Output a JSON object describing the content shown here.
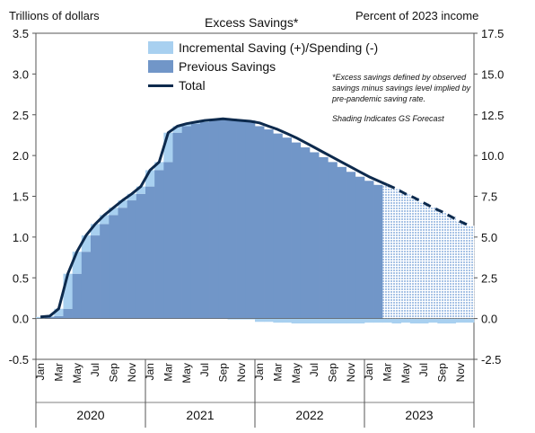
{
  "chart_data": {
    "type": "area",
    "title": "Excess Savings*",
    "ylabel_left": "Trillions of dollars",
    "ylabel_right": "Percent of 2023 income",
    "ylim_left": [
      -0.5,
      3.5
    ],
    "yticks_left": [
      "3.5",
      "3.0",
      "2.5",
      "2.0",
      "1.5",
      "1.0",
      "0.5",
      "0.0",
      "-0.5"
    ],
    "ylim_right": [
      -2.5,
      17.5
    ],
    "yticks_right": [
      "17.5",
      "15.0",
      "12.5",
      "10.0",
      "7.5",
      "5.0",
      "2.5",
      "0.0",
      "-2.5"
    ],
    "month_labels": [
      "Jan",
      "Mar",
      "May",
      "Jul",
      "Sep",
      "Nov"
    ],
    "years": [
      "2020",
      "2021",
      "2022",
      "2023"
    ],
    "legend": {
      "incremental": "Incremental Saving (+)/Spending (-)",
      "previous": "Previous Savings",
      "total": "Total"
    },
    "note_lines": [
      "*Excess savings defined by observed savings minus savings level implied by pre-pandemic saving rate.",
      "Shading Indicates GS Forecast"
    ],
    "forecast_start": "2023-03",
    "series": [
      {
        "name": "Total",
        "values": [
          0.02,
          0.03,
          0.12,
          0.55,
          0.82,
          1.02,
          1.16,
          1.27,
          1.36,
          1.45,
          1.53,
          1.62,
          1.82,
          1.92,
          2.28,
          2.36,
          2.39,
          2.41,
          2.43,
          2.44,
          2.45,
          2.44,
          2.43,
          2.42,
          2.4,
          2.36,
          2.32,
          2.27,
          2.22,
          2.16,
          2.1,
          2.04,
          1.98,
          1.92,
          1.86,
          1.8,
          1.74,
          1.69,
          1.64,
          1.59,
          1.53,
          1.48,
          1.42,
          1.36,
          1.31,
          1.25,
          1.19,
          1.14
        ]
      },
      {
        "name": "Previous Savings",
        "values": [
          0.0,
          0.02,
          0.03,
          0.12,
          0.55,
          0.82,
          1.02,
          1.16,
          1.27,
          1.36,
          1.45,
          1.53,
          1.62,
          1.82,
          1.92,
          2.28,
          2.36,
          2.39,
          2.41,
          2.43,
          2.44,
          2.45,
          2.44,
          2.43,
          2.36,
          2.32,
          2.27,
          2.22,
          2.16,
          2.1,
          2.04,
          1.98,
          1.92,
          1.86,
          1.8,
          1.74,
          1.69,
          1.64,
          1.59,
          1.53,
          1.48,
          1.42,
          1.36,
          1.31,
          1.25,
          1.19,
          1.14,
          1.09
        ]
      },
      {
        "name": "Incremental Saving (+)/Spending (-)",
        "values": [
          0.02,
          0.01,
          0.09,
          0.43,
          0.27,
          0.2,
          0.14,
          0.11,
          0.09,
          0.09,
          0.08,
          0.09,
          0.2,
          0.1,
          0.36,
          0.08,
          0.03,
          0.02,
          0.02,
          0.01,
          0.01,
          -0.01,
          -0.01,
          -0.01,
          -0.04,
          -0.04,
          -0.05,
          -0.05,
          -0.06,
          -0.06,
          -0.06,
          -0.06,
          -0.06,
          -0.06,
          -0.06,
          -0.06,
          -0.05,
          -0.05,
          -0.05,
          -0.06,
          -0.05,
          -0.06,
          -0.06,
          -0.05,
          -0.06,
          -0.06,
          -0.05,
          -0.05
        ]
      }
    ]
  }
}
